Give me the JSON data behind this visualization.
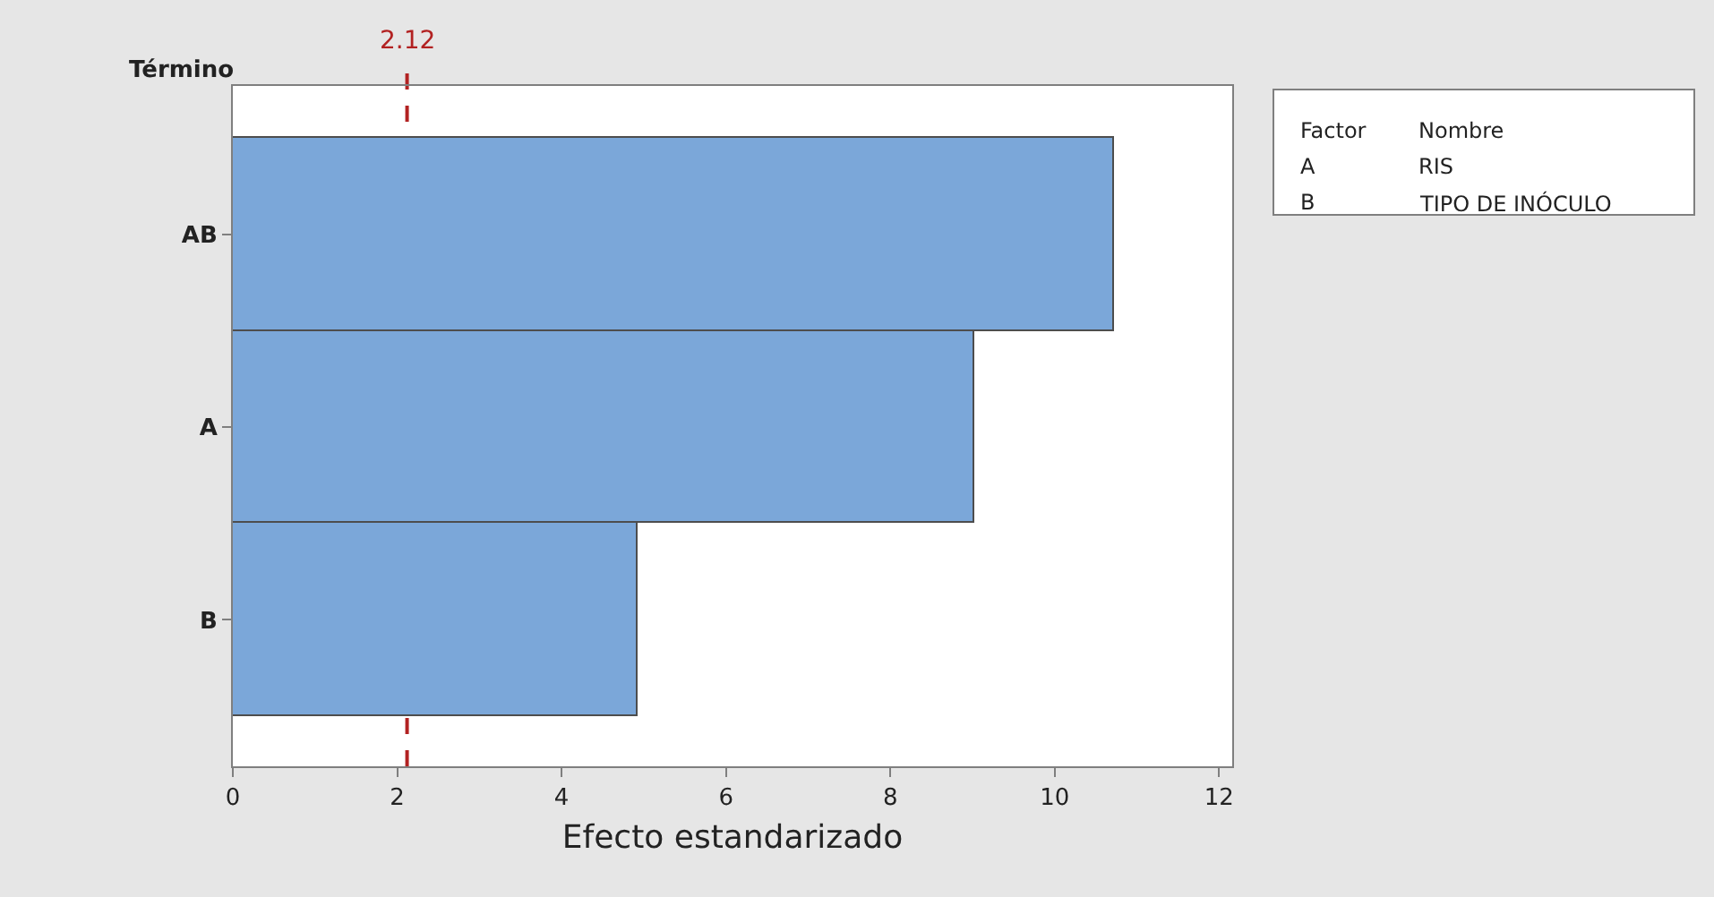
{
  "chart_data": {
    "type": "bar",
    "orientation": "horizontal",
    "ylabel": "Término",
    "xlabel": "Efecto estandarizado",
    "categories": [
      "AB",
      "A",
      "B"
    ],
    "values": [
      10.72,
      9.02,
      4.93
    ],
    "color": "#7ba7d9",
    "xlim": [
      0,
      12.16
    ],
    "xticks": [
      0,
      2,
      4,
      6,
      8,
      10,
      12
    ],
    "ref_lines": [
      {
        "axis": "x",
        "value": 2.12,
        "label": "2.12",
        "color": "#b22222",
        "line_style": "dashed"
      }
    ],
    "annotations": [
      "Factor",
      "Nombre",
      "A",
      "RIS",
      "B",
      "TIPO DE INÓCULO"
    ]
  }
}
